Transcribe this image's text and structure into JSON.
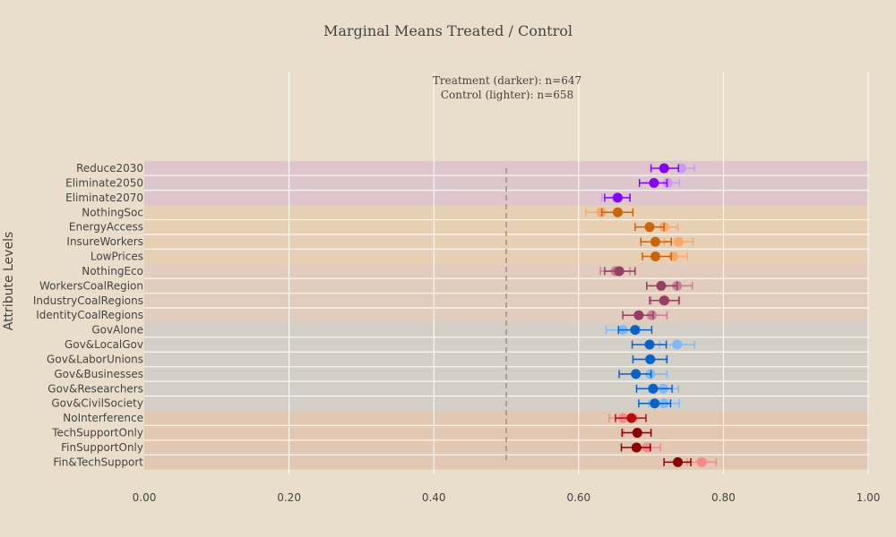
{
  "chart_data": {
    "type": "scatter",
    "title": "Marginal Means Treated / Control",
    "ylabel": "Attribute Levels",
    "xlabel": "",
    "xlim": [
      0,
      1
    ],
    "x_ticks": [
      "0.00",
      "0.20",
      "0.40",
      "0.60",
      "0.80",
      "1.00"
    ],
    "reference_line": 0.5,
    "annotation": [
      "Treatment (darker): n=647",
      "Control (lighter): n=658"
    ],
    "grid": true,
    "categories": [
      "Reduce2030",
      "Eliminate2050",
      "Eliminate2070",
      "NothingSoc",
      "EnergyAccess",
      "InsureWorkers",
      "LowPrices",
      "NothingEco",
      "WorkersCoalRegion",
      "IndustryCoalRegions",
      "IdentityCoalRegions",
      "GovAlone",
      "Gov&LocalGov",
      "Gov&LaborUnions",
      "Gov&Businesses",
      "Gov&Researchers",
      "Gov&CivilSociety",
      "NoInterference",
      "TechSupportOnly",
      "FinSupportOnly",
      "Fin&TechSupport"
    ],
    "bands": [
      {
        "rows": [
          0,
          2
        ],
        "color": "#dfc5cc"
      },
      {
        "rows": [
          3,
          6
        ],
        "color": "#e6cfb3"
      },
      {
        "rows": [
          7,
          10
        ],
        "color": "#e2ccbe"
      },
      {
        "rows": [
          11,
          16
        ],
        "color": "#d3cfc7"
      },
      {
        "rows": [
          17,
          20
        ],
        "color": "#e2c7b3"
      }
    ],
    "series": [
      {
        "name": "Control",
        "estimates": [
          0.742,
          0.723,
          0.652,
          0.631,
          0.718,
          0.738,
          0.731,
          0.651,
          0.736,
          0.719,
          0.701,
          0.661,
          0.736,
          0.698,
          0.699,
          0.717,
          0.718,
          0.661,
          0.681,
          0.694,
          0.77
        ],
        "ci_low": [
          0.722,
          0.705,
          0.632,
          0.61,
          0.697,
          0.718,
          0.711,
          0.63,
          0.716,
          0.7,
          0.68,
          0.638,
          0.712,
          0.675,
          0.677,
          0.697,
          0.697,
          0.642,
          0.662,
          0.674,
          0.75
        ],
        "ci_high": [
          0.76,
          0.739,
          0.67,
          0.651,
          0.737,
          0.758,
          0.75,
          0.671,
          0.757,
          0.738,
          0.722,
          0.684,
          0.76,
          0.721,
          0.722,
          0.738,
          0.739,
          0.68,
          0.7,
          0.713,
          0.79
        ],
        "colors": [
          "#c79df7",
          "#c79df7",
          "#c79df7",
          "#f9a86b",
          "#f9a86b",
          "#f9a86b",
          "#f9a86b",
          "#c68096",
          "#c68096",
          "#c68096",
          "#c68096",
          "#7fbaf7",
          "#7fbaf7",
          "#7fbaf7",
          "#7fbaf7",
          "#7fbaf7",
          "#7fbaf7",
          "#f48a8a",
          "#f48a8a",
          "#f48a8a",
          "#f48a8a"
        ]
      },
      {
        "name": "Treatment",
        "estimates": [
          0.718,
          0.704,
          0.654,
          0.654,
          0.698,
          0.706,
          0.706,
          0.656,
          0.714,
          0.718,
          0.683,
          0.678,
          0.698,
          0.699,
          0.679,
          0.703,
          0.705,
          0.673,
          0.681,
          0.68,
          0.737
        ],
        "ci_low": [
          0.7,
          0.684,
          0.636,
          0.632,
          0.678,
          0.686,
          0.688,
          0.636,
          0.694,
          0.698,
          0.661,
          0.655,
          0.674,
          0.675,
          0.656,
          0.68,
          0.683,
          0.651,
          0.66,
          0.659,
          0.718
        ],
        "ci_high": [
          0.738,
          0.722,
          0.671,
          0.675,
          0.718,
          0.728,
          0.728,
          0.678,
          0.736,
          0.739,
          0.703,
          0.701,
          0.721,
          0.722,
          0.7,
          0.729,
          0.727,
          0.693,
          0.7,
          0.699,
          0.755
        ],
        "colors": [
          "#8207f0",
          "#8207f0",
          "#8207f0",
          "#c9640a",
          "#c9640a",
          "#c9640a",
          "#c9640a",
          "#973e63",
          "#973e63",
          "#973e63",
          "#973e63",
          "#0a62c7",
          "#0a62c7",
          "#0a62c7",
          "#0a62c7",
          "#0a62c7",
          "#0a62c7",
          "#b80b0b",
          "#8a0101",
          "#8a0101",
          "#8a0101"
        ]
      }
    ]
  }
}
